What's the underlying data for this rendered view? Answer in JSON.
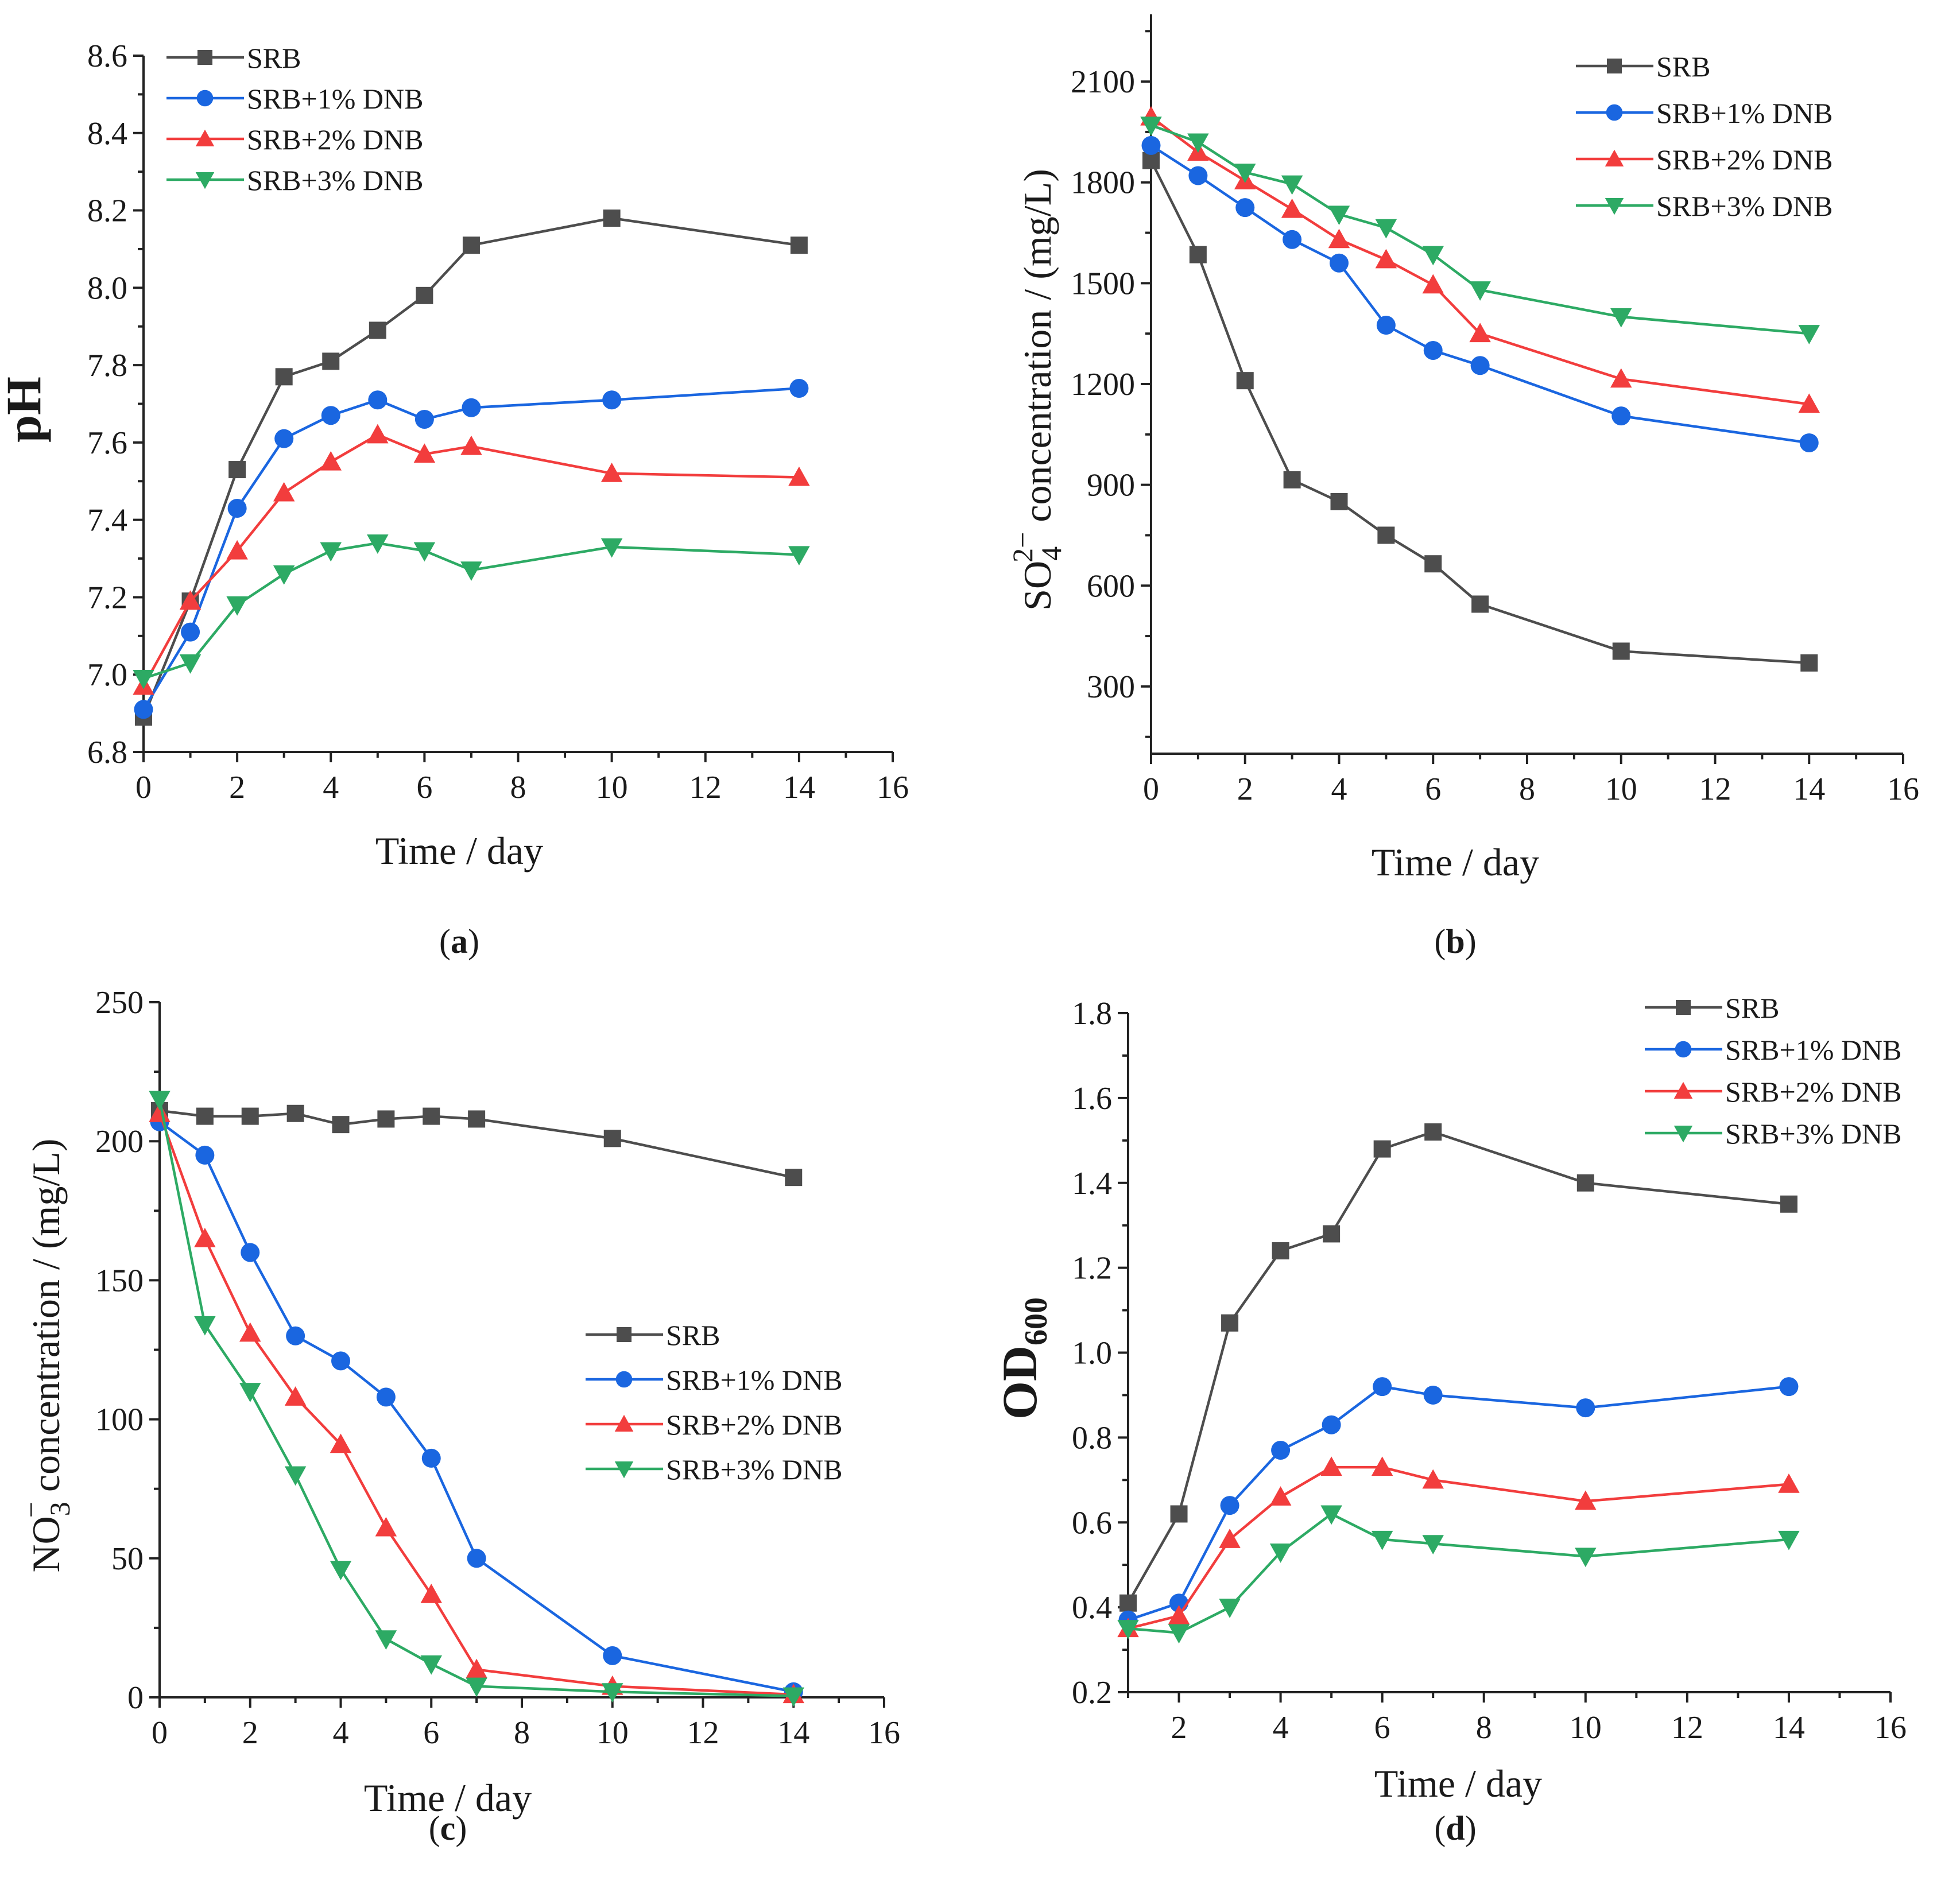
{
  "chart_data": [
    {
      "panel": "a",
      "type": "line",
      "caption_letter": "a",
      "xlabel": "Time / day",
      "ylabel": "pH",
      "ylabel_style": "bold",
      "xlim": [
        0,
        16
      ],
      "ylim": [
        6.8,
        8.6
      ],
      "xticks": [
        0,
        2,
        4,
        6,
        8,
        10,
        12,
        14,
        16
      ],
      "yticks": [
        6.8,
        7.0,
        7.2,
        7.4,
        7.6,
        7.8,
        8.0,
        8.2,
        8.4,
        8.6
      ],
      "ytick_decimals": 1,
      "legend_position": "top-left",
      "x": [
        0,
        1,
        2,
        3,
        4,
        5,
        6,
        7,
        10,
        14
      ],
      "series": [
        {
          "name": "SRB",
          "marker": "square",
          "color": "#4d4d4d",
          "values": [
            6.89,
            7.19,
            7.53,
            7.77,
            7.81,
            7.89,
            7.98,
            8.11,
            8.18,
            8.11
          ]
        },
        {
          "name": "SRB+1% DNB",
          "marker": "circle",
          "color": "#1a66e0",
          "values": [
            6.91,
            7.11,
            7.43,
            7.61,
            7.67,
            7.71,
            7.66,
            7.69,
            7.71,
            7.74
          ]
        },
        {
          "name": "SRB+2% DNB",
          "marker": "triangle-up",
          "color": "#f23d3d",
          "values": [
            6.97,
            7.19,
            7.32,
            7.47,
            7.55,
            7.62,
            7.57,
            7.59,
            7.52,
            7.51
          ]
        },
        {
          "name": "SRB+3% DNB",
          "marker": "triangle-down",
          "color": "#2daa64",
          "values": [
            6.99,
            7.03,
            7.18,
            7.26,
            7.32,
            7.34,
            7.32,
            7.27,
            7.33,
            7.31
          ]
        }
      ]
    },
    {
      "panel": "b",
      "type": "line",
      "caption_letter": "b",
      "xlabel": "Time / day",
      "ylabel_parts": [
        "SO",
        "4",
        "2−",
        " concentration / (mg/L)"
      ],
      "xlim": [
        0,
        16
      ],
      "ylim": [
        100,
        2300
      ],
      "xticks": [
        0,
        2,
        4,
        6,
        8,
        10,
        12,
        14,
        16
      ],
      "yticks": [
        300,
        600,
        900,
        1200,
        1500,
        1800,
        2100
      ],
      "ytick_decimals": 0,
      "legend_position": "top-right",
      "x": [
        0,
        1,
        2,
        3,
        4,
        5,
        6,
        7,
        10,
        14
      ],
      "series": [
        {
          "name": "SRB",
          "marker": "square",
          "color": "#4d4d4d",
          "values": [
            1865,
            1585,
            1210,
            915,
            850,
            750,
            665,
            545,
            405,
            370
          ]
        },
        {
          "name": "SRB+1% DNB",
          "marker": "circle",
          "color": "#1a66e0",
          "values": [
            1910,
            1820,
            1725,
            1630,
            1560,
            1375,
            1300,
            1255,
            1105,
            1025
          ]
        },
        {
          "name": "SRB+2% DNB",
          "marker": "triangle-up",
          "color": "#f23d3d",
          "values": [
            1995,
            1890,
            1805,
            1720,
            1630,
            1570,
            1495,
            1350,
            1215,
            1140
          ]
        },
        {
          "name": "SRB+3% DNB",
          "marker": "triangle-down",
          "color": "#2daa64",
          "values": [
            1970,
            1920,
            1830,
            1795,
            1705,
            1665,
            1585,
            1480,
            1400,
            1350
          ]
        }
      ]
    },
    {
      "panel": "c",
      "type": "line",
      "caption_letter": "c",
      "xlabel": "Time / day",
      "ylabel_parts": [
        "NO",
        "3",
        "−",
        " concentration / (mg/L)"
      ],
      "xlim": [
        0,
        16
      ],
      "ylim": [
        0,
        250
      ],
      "xticks": [
        0,
        2,
        4,
        6,
        8,
        10,
        12,
        14,
        16
      ],
      "yticks": [
        0,
        50,
        100,
        150,
        200,
        250
      ],
      "ytick_decimals": 0,
      "legend_position": "center-right",
      "x": [
        0,
        1,
        2,
        3,
        4,
        5,
        6,
        7,
        10,
        14
      ],
      "series": [
        {
          "name": "SRB",
          "marker": "square",
          "color": "#4d4d4d",
          "values": [
            211,
            209,
            209,
            210,
            206,
            208,
            209,
            208,
            201,
            187
          ]
        },
        {
          "name": "SRB+1% DNB",
          "marker": "circle",
          "color": "#1a66e0",
          "values": [
            207,
            195,
            160,
            130,
            121,
            108,
            86,
            50,
            15,
            2
          ]
        },
        {
          "name": "SRB+2% DNB",
          "marker": "triangle-up",
          "color": "#f23d3d",
          "values": [
            210,
            165,
            131,
            108,
            91,
            61,
            37,
            10,
            4,
            1
          ]
        },
        {
          "name": "SRB+3% DNB",
          "marker": "triangle-down",
          "color": "#2daa64",
          "values": [
            215,
            134,
            110,
            80,
            46,
            21,
            12,
            4,
            2,
            0.5
          ]
        }
      ]
    },
    {
      "panel": "d",
      "type": "line",
      "caption_letter": "d",
      "xlabel": "Time / day",
      "ylabel_parts": [
        "OD",
        "600"
      ],
      "xlim": [
        1,
        16
      ],
      "ylim": [
        0.2,
        1.8
      ],
      "xticks": [
        2,
        4,
        6,
        8,
        10,
        12,
        14,
        16
      ],
      "yticks": [
        0.2,
        0.4,
        0.6,
        0.8,
        1.0,
        1.2,
        1.4,
        1.6,
        1.8
      ],
      "ytick_decimals": 1,
      "legend_position": "top-right",
      "x": [
        1,
        2,
        3,
        4,
        5,
        6,
        7,
        10,
        14
      ],
      "series": [
        {
          "name": "SRB",
          "marker": "square",
          "color": "#4d4d4d",
          "values": [
            0.41,
            0.62,
            1.07,
            1.24,
            1.28,
            1.48,
            1.52,
            1.4,
            1.35
          ]
        },
        {
          "name": "SRB+1% DNB",
          "marker": "circle",
          "color": "#1a66e0",
          "values": [
            0.37,
            0.41,
            0.64,
            0.77,
            0.83,
            0.92,
            0.9,
            0.87,
            0.92
          ]
        },
        {
          "name": "SRB+2% DNB",
          "marker": "triangle-up",
          "color": "#f23d3d",
          "values": [
            0.35,
            0.38,
            0.56,
            0.66,
            0.73,
            0.73,
            0.7,
            0.65,
            0.69
          ]
        },
        {
          "name": "SRB+3% DNB",
          "marker": "triangle-down",
          "color": "#2daa64",
          "values": [
            0.35,
            0.34,
            0.4,
            0.53,
            0.62,
            0.56,
            0.55,
            0.52,
            0.56
          ]
        }
      ]
    }
  ]
}
